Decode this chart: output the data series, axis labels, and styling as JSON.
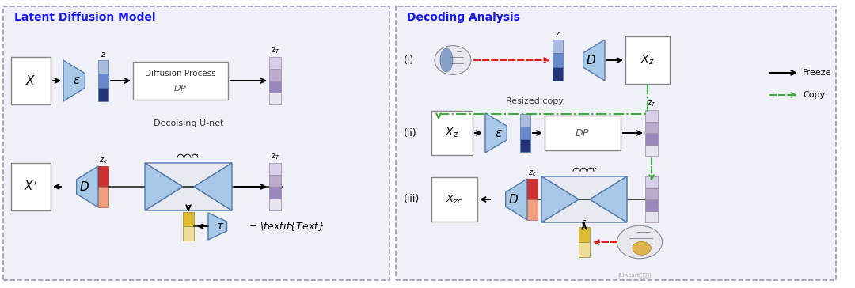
{
  "bg_color": "#ffffff",
  "left_panel_title": "Latent Diffusion Model",
  "right_panel_title": "Decoding Analysis",
  "title_color": "#1a1aee",
  "blue_fill": "#a8c8e8",
  "blue_edge": "#5577aa",
  "panel_bg": "#f0f0f8",
  "panel_edge": "#9999bb",
  "box_fc": "#ffffff",
  "box_ec": "#888888",
  "dark_blue_seg": "#223377",
  "mid_blue_seg": "#6688cc",
  "light_blue_seg": "#aabbdd",
  "zT_colors": [
    "#e8e4f0",
    "#9988bb",
    "#bbaacc",
    "#d8d0e8"
  ],
  "zc_top": "#cc3333",
  "zc_bot": "#f0a080",
  "c_top": "#ddbb33",
  "c_bot": "#eedd99",
  "arrow_black": "#111111",
  "arrow_red": "#dd2222",
  "arrow_green": "#44aa44",
  "brain1_fc": "#e8e8ee",
  "brain1_ec": "#888899",
  "brain_blue": "#6688bb",
  "brain2_orange": "#ddaa33",
  "watermark": "(Lineart店内网)"
}
